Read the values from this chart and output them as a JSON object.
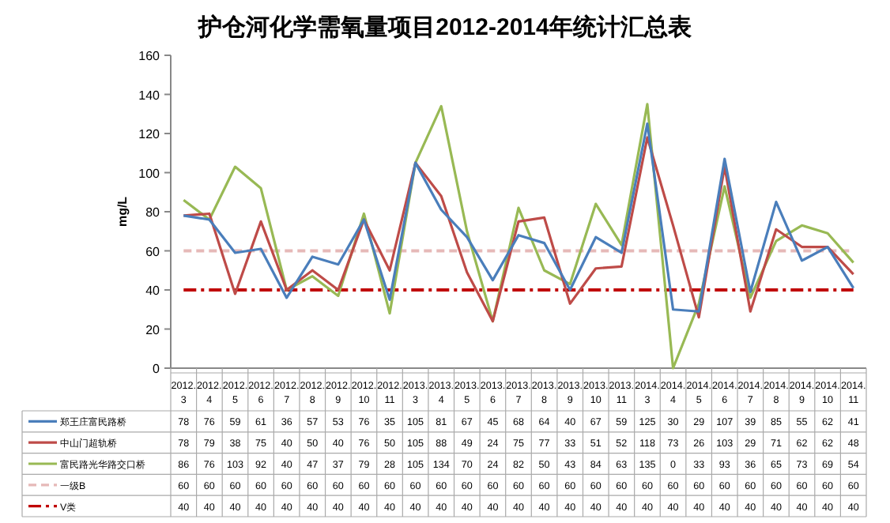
{
  "chart_data": {
    "type": "line",
    "title": "护仓河化学需氧量项目2012-2014年统计汇总表",
    "ylabel": "mg/L",
    "categories": [
      "2012.3",
      "2012.4",
      "2012.5",
      "2012.6",
      "2012.7",
      "2012.8",
      "2012.9",
      "2012.10",
      "2012.11",
      "2013.3",
      "2013.4",
      "2013.5",
      "2013.6",
      "2013.7",
      "2013.8",
      "2013.9",
      "2013.10",
      "2013.11",
      "2014.3",
      "2014.4",
      "2014.5",
      "2014.6",
      "2014.7",
      "2014.8",
      "2014.9",
      "2014.10",
      "2014.11"
    ],
    "series": [
      {
        "name": "郑王庄富民路桥",
        "color": "#4a7ebb",
        "values": [
          78,
          76,
          59,
          61,
          36,
          57,
          53,
          76,
          35,
          105,
          81,
          67,
          45,
          68,
          64,
          40,
          67,
          59,
          125,
          30,
          29,
          107,
          39,
          85,
          55,
          62,
          41
        ]
      },
      {
        "name": "中山门超轨桥",
        "color": "#be4b48",
        "values": [
          78,
          79,
          38,
          75,
          40,
          50,
          40,
          76,
          50,
          105,
          88,
          49,
          24,
          75,
          77,
          33,
          51,
          52,
          118,
          73,
          26,
          103,
          29,
          71,
          62,
          62,
          48
        ]
      },
      {
        "name": "富民路光华路交口桥",
        "color": "#98b954",
        "values": [
          86,
          76,
          103,
          92,
          40,
          47,
          37,
          79,
          28,
          105,
          134,
          70,
          24,
          82,
          50,
          43,
          84,
          63,
          135,
          0,
          33,
          93,
          36,
          65,
          73,
          69,
          54
        ]
      },
      {
        "name": "一级B",
        "color": "#e6b9b8",
        "line_style": "dashed",
        "values": [
          60,
          60,
          60,
          60,
          60,
          60,
          60,
          60,
          60,
          60,
          60,
          60,
          60,
          60,
          60,
          60,
          60,
          60,
          60,
          60,
          60,
          60,
          60,
          60,
          60,
          60,
          60
        ]
      },
      {
        "name": "V类",
        "color": "#c00000",
        "line_style": "dashdot",
        "values": [
          40,
          40,
          40,
          40,
          40,
          40,
          40,
          40,
          40,
          40,
          40,
          40,
          40,
          40,
          40,
          40,
          40,
          40,
          40,
          40,
          40,
          40,
          40,
          40,
          40,
          40,
          40
        ]
      }
    ],
    "ylim": [
      0,
      160
    ],
    "yticks": [
      0,
      20,
      40,
      60,
      80,
      100,
      120,
      140,
      160
    ],
    "grid": false,
    "legend": "bottom",
    "marker": "none",
    "line_style": "solid",
    "data_labels": true
  }
}
